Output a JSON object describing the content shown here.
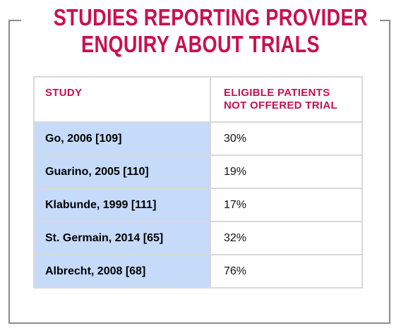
{
  "title": {
    "line1": "STUDIES REPORTING PROVIDER",
    "line2": "ENQUIRY ABOUT TRIALS"
  },
  "table": {
    "headers": {
      "study": "STUDY",
      "eligible_line1": "ELIGIBLE PATIENTS",
      "eligible_line2": "NOT OFFERED TRIAL"
    },
    "rows": [
      {
        "study": "Go, 2006 [109]",
        "value": "30%"
      },
      {
        "study": "Guarino, 2005 [110]",
        "value": "19%"
      },
      {
        "study": "Klabunde, 1999 [111]",
        "value": "17%"
      },
      {
        "study": "St. Germain, 2014 [65]",
        "value": "32%"
      },
      {
        "study": "Albrecht, 2008 [68]",
        "value": "76%"
      }
    ]
  },
  "colors": {
    "accent": "#c8104f",
    "study_cell_bg": "#c6dafa",
    "border": "#d9d9d9",
    "frame": "#8c8c8c"
  }
}
